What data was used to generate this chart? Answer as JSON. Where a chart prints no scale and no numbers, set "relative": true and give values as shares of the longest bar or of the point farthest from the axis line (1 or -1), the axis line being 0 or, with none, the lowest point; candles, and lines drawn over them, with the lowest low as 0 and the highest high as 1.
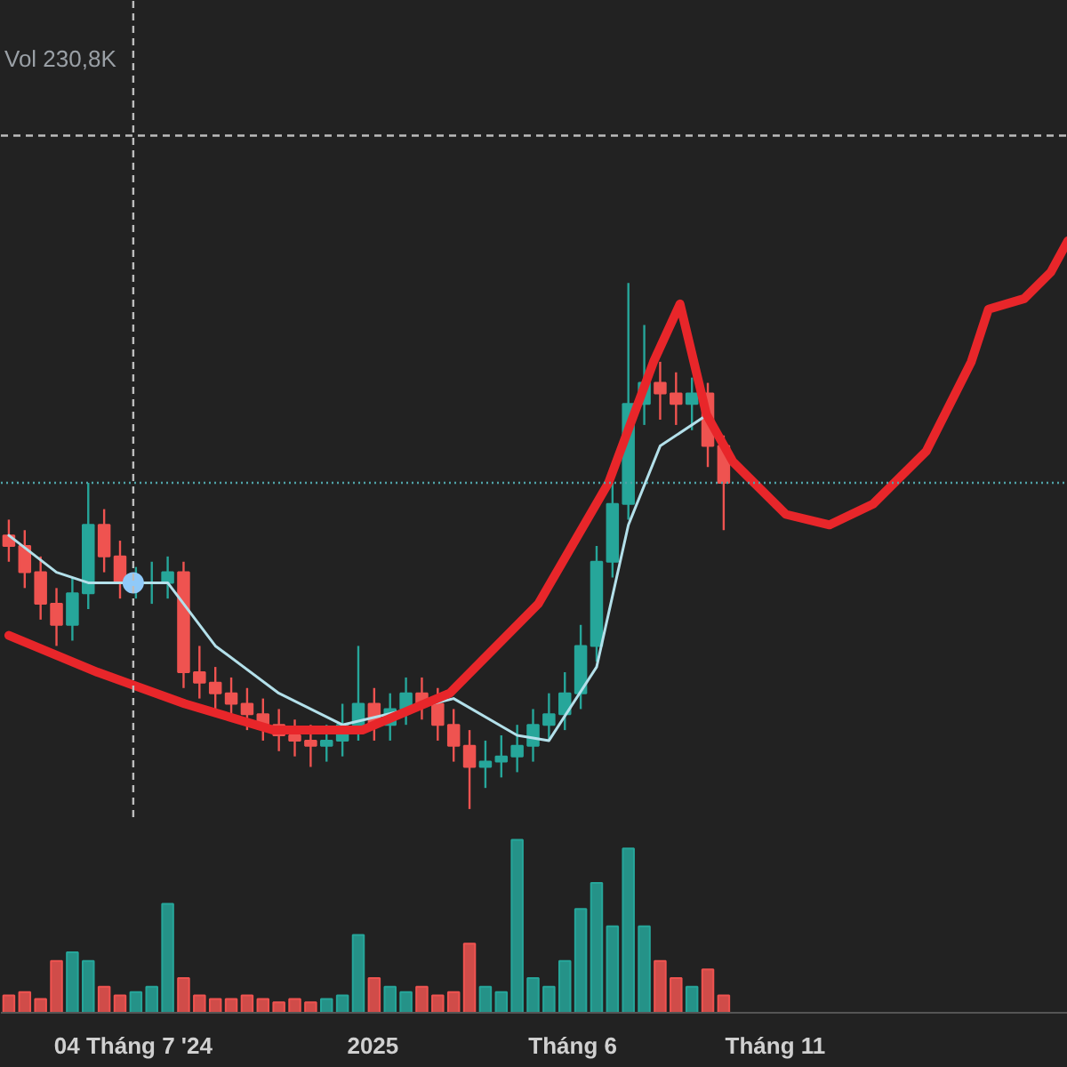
{
  "chart_data": [
    {
      "type": "candlestick",
      "relative": true,
      "grid": false,
      "annotations": [
        "Vol 230,8K"
      ],
      "x": [
        "2024-04-01",
        "2024-04-13",
        "2024-04-25",
        "2024-05-07",
        "2024-05-19",
        "2024-05-31",
        "2024-06-12",
        "2024-06-24",
        "2024-07-06",
        "2024-07-18",
        "2024-07-30",
        "2024-08-11",
        "2024-08-23",
        "2024-09-04",
        "2024-09-16",
        "2024-09-28",
        "2024-10-10",
        "2024-10-22",
        "2024-11-03",
        "2024-11-15",
        "2024-11-27",
        "2024-12-09",
        "2024-12-21",
        "2025-01-02",
        "2025-01-14",
        "2025-01-26",
        "2025-02-07",
        "2025-02-19",
        "2025-03-03",
        "2025-03-15",
        "2025-03-27",
        "2025-04-08",
        "2025-04-20",
        "2025-05-02",
        "2025-05-14",
        "2025-05-26",
        "2025-06-07",
        "2025-06-19",
        "2025-07-01",
        "2025-07-13",
        "2025-07-25",
        "2025-08-06",
        "2025-08-18",
        "2025-08-30",
        "2025-09-11",
        "2025-09-23"
      ],
      "ohlc": [
        [
          0.52,
          0.55,
          0.47,
          0.5
        ],
        [
          0.5,
          0.53,
          0.42,
          0.45
        ],
        [
          0.45,
          0.48,
          0.36,
          0.39
        ],
        [
          0.39,
          0.42,
          0.31,
          0.35
        ],
        [
          0.35,
          0.44,
          0.32,
          0.41
        ],
        [
          0.41,
          0.62,
          0.38,
          0.54
        ],
        [
          0.54,
          0.57,
          0.45,
          0.48
        ],
        [
          0.48,
          0.51,
          0.4,
          0.43
        ],
        [
          0.43,
          0.46,
          0.4,
          0.43
        ],
        [
          0.43,
          0.47,
          0.39,
          0.43
        ],
        [
          0.43,
          0.48,
          0.4,
          0.45
        ],
        [
          0.45,
          0.47,
          0.23,
          0.26
        ],
        [
          0.26,
          0.31,
          0.21,
          0.24
        ],
        [
          0.24,
          0.27,
          0.19,
          0.22
        ],
        [
          0.22,
          0.25,
          0.17,
          0.2
        ],
        [
          0.2,
          0.23,
          0.15,
          0.18
        ],
        [
          0.18,
          0.21,
          0.13,
          0.16
        ],
        [
          0.16,
          0.19,
          0.11,
          0.14
        ],
        [
          0.14,
          0.17,
          0.1,
          0.13
        ],
        [
          0.13,
          0.16,
          0.08,
          0.12
        ],
        [
          0.12,
          0.16,
          0.09,
          0.13
        ],
        [
          0.13,
          0.2,
          0.1,
          0.16
        ],
        [
          0.16,
          0.31,
          0.13,
          0.2
        ],
        [
          0.2,
          0.23,
          0.13,
          0.16
        ],
        [
          0.16,
          0.22,
          0.13,
          0.19
        ],
        [
          0.19,
          0.25,
          0.16,
          0.22
        ],
        [
          0.22,
          0.25,
          0.17,
          0.2
        ],
        [
          0.2,
          0.23,
          0.13,
          0.16
        ],
        [
          0.16,
          0.19,
          0.09,
          0.12
        ],
        [
          0.12,
          0.15,
          0.0,
          0.08
        ],
        [
          0.08,
          0.13,
          0.04,
          0.09
        ],
        [
          0.09,
          0.14,
          0.06,
          0.1
        ],
        [
          0.1,
          0.16,
          0.07,
          0.12
        ],
        [
          0.12,
          0.19,
          0.09,
          0.16
        ],
        [
          0.16,
          0.22,
          0.13,
          0.18
        ],
        [
          0.18,
          0.26,
          0.15,
          0.22
        ],
        [
          0.22,
          0.35,
          0.19,
          0.31
        ],
        [
          0.31,
          0.5,
          0.28,
          0.47
        ],
        [
          0.47,
          0.62,
          0.44,
          0.58
        ],
        [
          0.58,
          1.0,
          0.55,
          0.77
        ],
        [
          0.77,
          0.92,
          0.73,
          0.81
        ],
        [
          0.81,
          0.85,
          0.74,
          0.79
        ],
        [
          0.79,
          0.83,
          0.73,
          0.77
        ],
        [
          0.77,
          0.82,
          0.72,
          0.79
        ],
        [
          0.79,
          0.81,
          0.65,
          0.69
        ],
        [
          0.69,
          0.71,
          0.53,
          0.62
        ]
      ],
      "colors": [
        "#ef5350",
        "#ef5350",
        "#ef5350",
        "#ef5350",
        "#26a69a",
        "#26a69a",
        "#ef5350",
        "#ef5350",
        "#26a69a",
        "#26a69a",
        "#26a69a",
        "#ef5350",
        "#ef5350",
        "#ef5350",
        "#ef5350",
        "#ef5350",
        "#ef5350",
        "#ef5350",
        "#ef5350",
        "#ef5350",
        "#26a69a",
        "#26a69a",
        "#26a69a",
        "#ef5350",
        "#26a69a",
        "#26a69a",
        "#ef5350",
        "#ef5350",
        "#ef5350",
        "#ef5350",
        "#26a69a",
        "#26a69a",
        "#26a69a",
        "#26a69a",
        "#26a69a",
        "#26a69a",
        "#26a69a",
        "#26a69a",
        "#26a69a",
        "#26a69a",
        "#26a69a",
        "#ef5350",
        "#ef5350",
        "#26a69a",
        "#ef5350",
        "#ef5350"
      ],
      "series": [
        {
          "type": "line",
          "color": "#b3e0ea",
          "x": [
            "2024-04-01",
            "2024-05-07",
            "2024-05-31",
            "2024-07-30",
            "2024-09-04",
            "2024-10-22",
            "2024-12-09",
            "2025-03-03",
            "2025-04-20",
            "2025-05-14",
            "2025-06-19",
            "2025-07-13",
            "2025-08-06",
            "2025-09-11"
          ],
          "values": [
            0.52,
            0.45,
            0.43,
            0.43,
            0.31,
            0.22,
            0.16,
            0.21,
            0.14,
            0.13,
            0.27,
            0.54,
            0.69,
            0.75
          ]
        },
        {
          "type": "line",
          "color": "#e8262a",
          "x": [
            "2024-04-01",
            "2024-06-07",
            "2024-08-12",
            "2024-10-18",
            "2024-12-24",
            "2025-02-28",
            "2025-05-06",
            "2025-06-28",
            "2025-08-01",
            "2025-08-21",
            "2025-09-10",
            "2025-09-30",
            "2025-11-09",
            "2025-12-12",
            "2026-01-14",
            "2026-02-23",
            "2026-03-29",
            "2026-04-11",
            "2026-05-08",
            "2026-05-28",
            "2026-06-10"
          ],
          "values": [
            0.33,
            0.26,
            0.2,
            0.15,
            0.15,
            0.22,
            0.39,
            0.62,
            0.85,
            0.96,
            0.75,
            0.66,
            0.56,
            0.54,
            0.58,
            0.68,
            0.85,
            0.95,
            0.97,
            1.02,
            1.08
          ]
        },
        {
          "type": "scatter",
          "color": "#90caf9",
          "marker": "circle",
          "x": [
            "2024-07-04"
          ],
          "values": [
            0.43
          ]
        }
      ],
      "ref_lines": [
        {
          "axis": "y",
          "value": 1.28,
          "color": "#bdbdbd",
          "line_style": "dashed"
        },
        {
          "axis": "y",
          "value": 0.62,
          "color": "#4fa3a8",
          "line_style": "dotted"
        },
        {
          "axis": "x",
          "value": "2024-07-04",
          "color": "#bdbdbd",
          "line_style": "dashed"
        }
      ],
      "xlim": [
        "2024-03-26",
        "2026-06-10"
      ]
    },
    {
      "type": "bar",
      "relative": true,
      "grid": false,
      "x": [
        "2024-04-01",
        "2024-04-13",
        "2024-04-25",
        "2024-05-07",
        "2024-05-19",
        "2024-05-31",
        "2024-06-12",
        "2024-06-24",
        "2024-07-06",
        "2024-07-18",
        "2024-07-30",
        "2024-08-11",
        "2024-08-23",
        "2024-09-04",
        "2024-09-16",
        "2024-09-28",
        "2024-10-10",
        "2024-10-22",
        "2024-11-03",
        "2024-11-15",
        "2024-11-27",
        "2024-12-09",
        "2024-12-21",
        "2025-01-02",
        "2025-01-14",
        "2025-01-26",
        "2025-02-07",
        "2025-02-19",
        "2025-03-03",
        "2025-03-15",
        "2025-03-27",
        "2025-04-08",
        "2025-04-20",
        "2025-05-02",
        "2025-05-14",
        "2025-05-26",
        "2025-06-07",
        "2025-06-19",
        "2025-07-01",
        "2025-07-13",
        "2025-07-25",
        "2025-08-06",
        "2025-08-18",
        "2025-08-30",
        "2025-09-11",
        "2025-09-23"
      ],
      "values": [
        0.1,
        0.12,
        0.08,
        0.3,
        0.35,
        0.3,
        0.15,
        0.1,
        0.12,
        0.15,
        0.63,
        0.2,
        0.1,
        0.08,
        0.08,
        0.1,
        0.08,
        0.06,
        0.08,
        0.06,
        0.08,
        0.1,
        0.45,
        0.2,
        0.15,
        0.12,
        0.15,
        0.1,
        0.12,
        0.4,
        0.15,
        0.12,
        1.0,
        0.2,
        0.15,
        0.3,
        0.6,
        0.75,
        0.5,
        0.95,
        0.5,
        0.3,
        0.2,
        0.15,
        0.25,
        0.1
      ],
      "colors": [
        "#ef5350",
        "#ef5350",
        "#ef5350",
        "#ef5350",
        "#26a69a",
        "#26a69a",
        "#ef5350",
        "#ef5350",
        "#26a69a",
        "#26a69a",
        "#26a69a",
        "#ef5350",
        "#ef5350",
        "#ef5350",
        "#ef5350",
        "#ef5350",
        "#ef5350",
        "#ef5350",
        "#ef5350",
        "#ef5350",
        "#26a69a",
        "#26a69a",
        "#26a69a",
        "#ef5350",
        "#26a69a",
        "#26a69a",
        "#ef5350",
        "#ef5350",
        "#ef5350",
        "#ef5350",
        "#26a69a",
        "#26a69a",
        "#26a69a",
        "#26a69a",
        "#26a69a",
        "#26a69a",
        "#26a69a",
        "#26a69a",
        "#26a69a",
        "#26a69a",
        "#26a69a",
        "#ef5350",
        "#ef5350",
        "#26a69a",
        "#ef5350",
        "#ef5350"
      ],
      "xlim": [
        "2024-03-26",
        "2026-06-10"
      ],
      "xticks": [
        {
          "value": "2024-07-04",
          "label": "04 Tháng 7 '24"
        },
        {
          "value": "2025-01-01",
          "label": "2025"
        },
        {
          "value": "2025-06-01",
          "label": "Tháng 6"
        },
        {
          "value": "2025-11-01",
          "label": "Tháng 11"
        }
      ]
    }
  ]
}
